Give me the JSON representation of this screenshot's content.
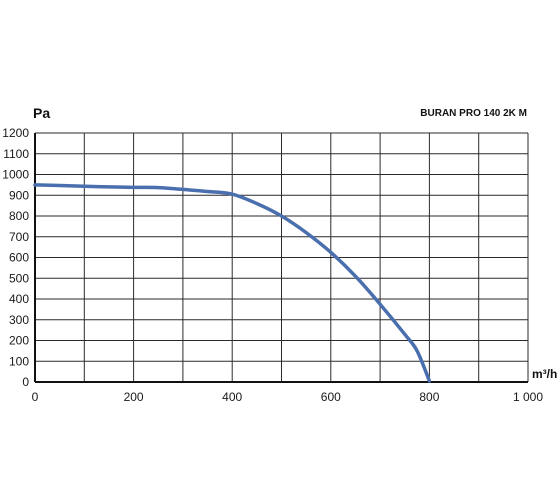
{
  "chart_data": {
    "type": "line",
    "title": "BURAN PRO 140 2K M",
    "ylabel": "Pa",
    "xlabel": "m³/h",
    "xlim": [
      0,
      1000
    ],
    "ylim": [
      0,
      1200
    ],
    "x_tick_labels": [
      "0",
      "200",
      "400",
      "600",
      "800",
      "1 000"
    ],
    "y_tick_labels": [
      "0",
      "100",
      "200",
      "300",
      "400",
      "500",
      "600",
      "700",
      "800",
      "900",
      "1000",
      "1100",
      "1200"
    ],
    "grid": true,
    "series": [
      {
        "color": "#4a6fae",
        "x": [
          0,
          50,
          100,
          150,
          200,
          250,
          300,
          350,
          400,
          450,
          500,
          550,
          600,
          650,
          700,
          750,
          775,
          800
        ],
        "y": [
          950,
          947,
          943,
          940,
          938,
          937,
          928,
          918,
          905,
          860,
          800,
          720,
          625,
          510,
          375,
          230,
          150,
          5
        ]
      }
    ]
  }
}
